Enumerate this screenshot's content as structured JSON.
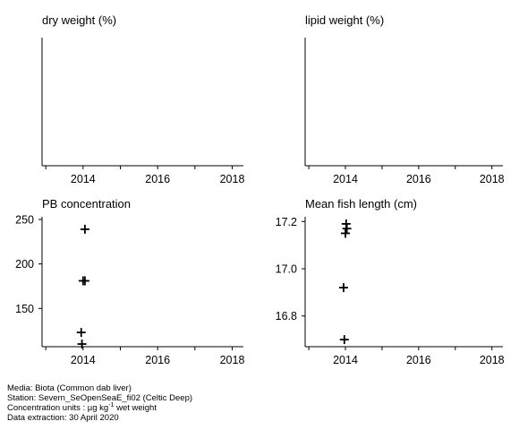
{
  "chart_data": [
    {
      "type": "scatter",
      "title": "dry weight (%)",
      "x_ticks": [
        "2014",
        "2016",
        "2018"
      ],
      "xlim": [
        2012.9,
        2018.3
      ],
      "y_ticks": [],
      "ylim": null,
      "points": []
    },
    {
      "type": "scatter",
      "title": "lipid weight (%)",
      "x_ticks": [
        "2014",
        "2016",
        "2018"
      ],
      "xlim": [
        2012.9,
        2018.3
      ],
      "y_ticks": [],
      "ylim": null,
      "points": []
    },
    {
      "type": "scatter",
      "title": "PB concentration",
      "x_ticks": [
        "2014",
        "2016",
        "2018"
      ],
      "xlim": [
        2012.9,
        2018.3
      ],
      "y_ticks": [
        "150",
        "200",
        "250"
      ],
      "ylim": [
        107,
        253
      ],
      "points": [
        {
          "x": 2014.05,
          "y": 239
        },
        {
          "x": 2014.0,
          "y": 181
        },
        {
          "x": 2014.05,
          "y": 181
        },
        {
          "x": 2013.95,
          "y": 123
        },
        {
          "x": 2013.97,
          "y": 110
        }
      ]
    },
    {
      "type": "scatter",
      "title": "Mean fish length (cm)",
      "x_ticks": [
        "2014",
        "2016",
        "2018"
      ],
      "xlim": [
        2012.9,
        2018.3
      ],
      "y_ticks": [
        "16.8",
        "17.0",
        "17.2"
      ],
      "ylim": [
        16.67,
        17.22
      ],
      "points": [
        {
          "x": 2014.02,
          "y": 17.19
        },
        {
          "x": 2014.04,
          "y": 17.17
        },
        {
          "x": 2014.0,
          "y": 17.15
        },
        {
          "x": 2013.95,
          "y": 16.92
        },
        {
          "x": 2013.97,
          "y": 16.7
        }
      ]
    }
  ],
  "footer": {
    "media": "Media: Biota (Common dab liver)",
    "station": "Station: Severn_SeOpenSeaE_fi02 (Celtic Deep)",
    "units_prefix": "Concentration units :  µg kg",
    "units_exp": "-1",
    "units_suffix": " wet weight",
    "extraction": "Data extraction: 30 April 2020"
  }
}
